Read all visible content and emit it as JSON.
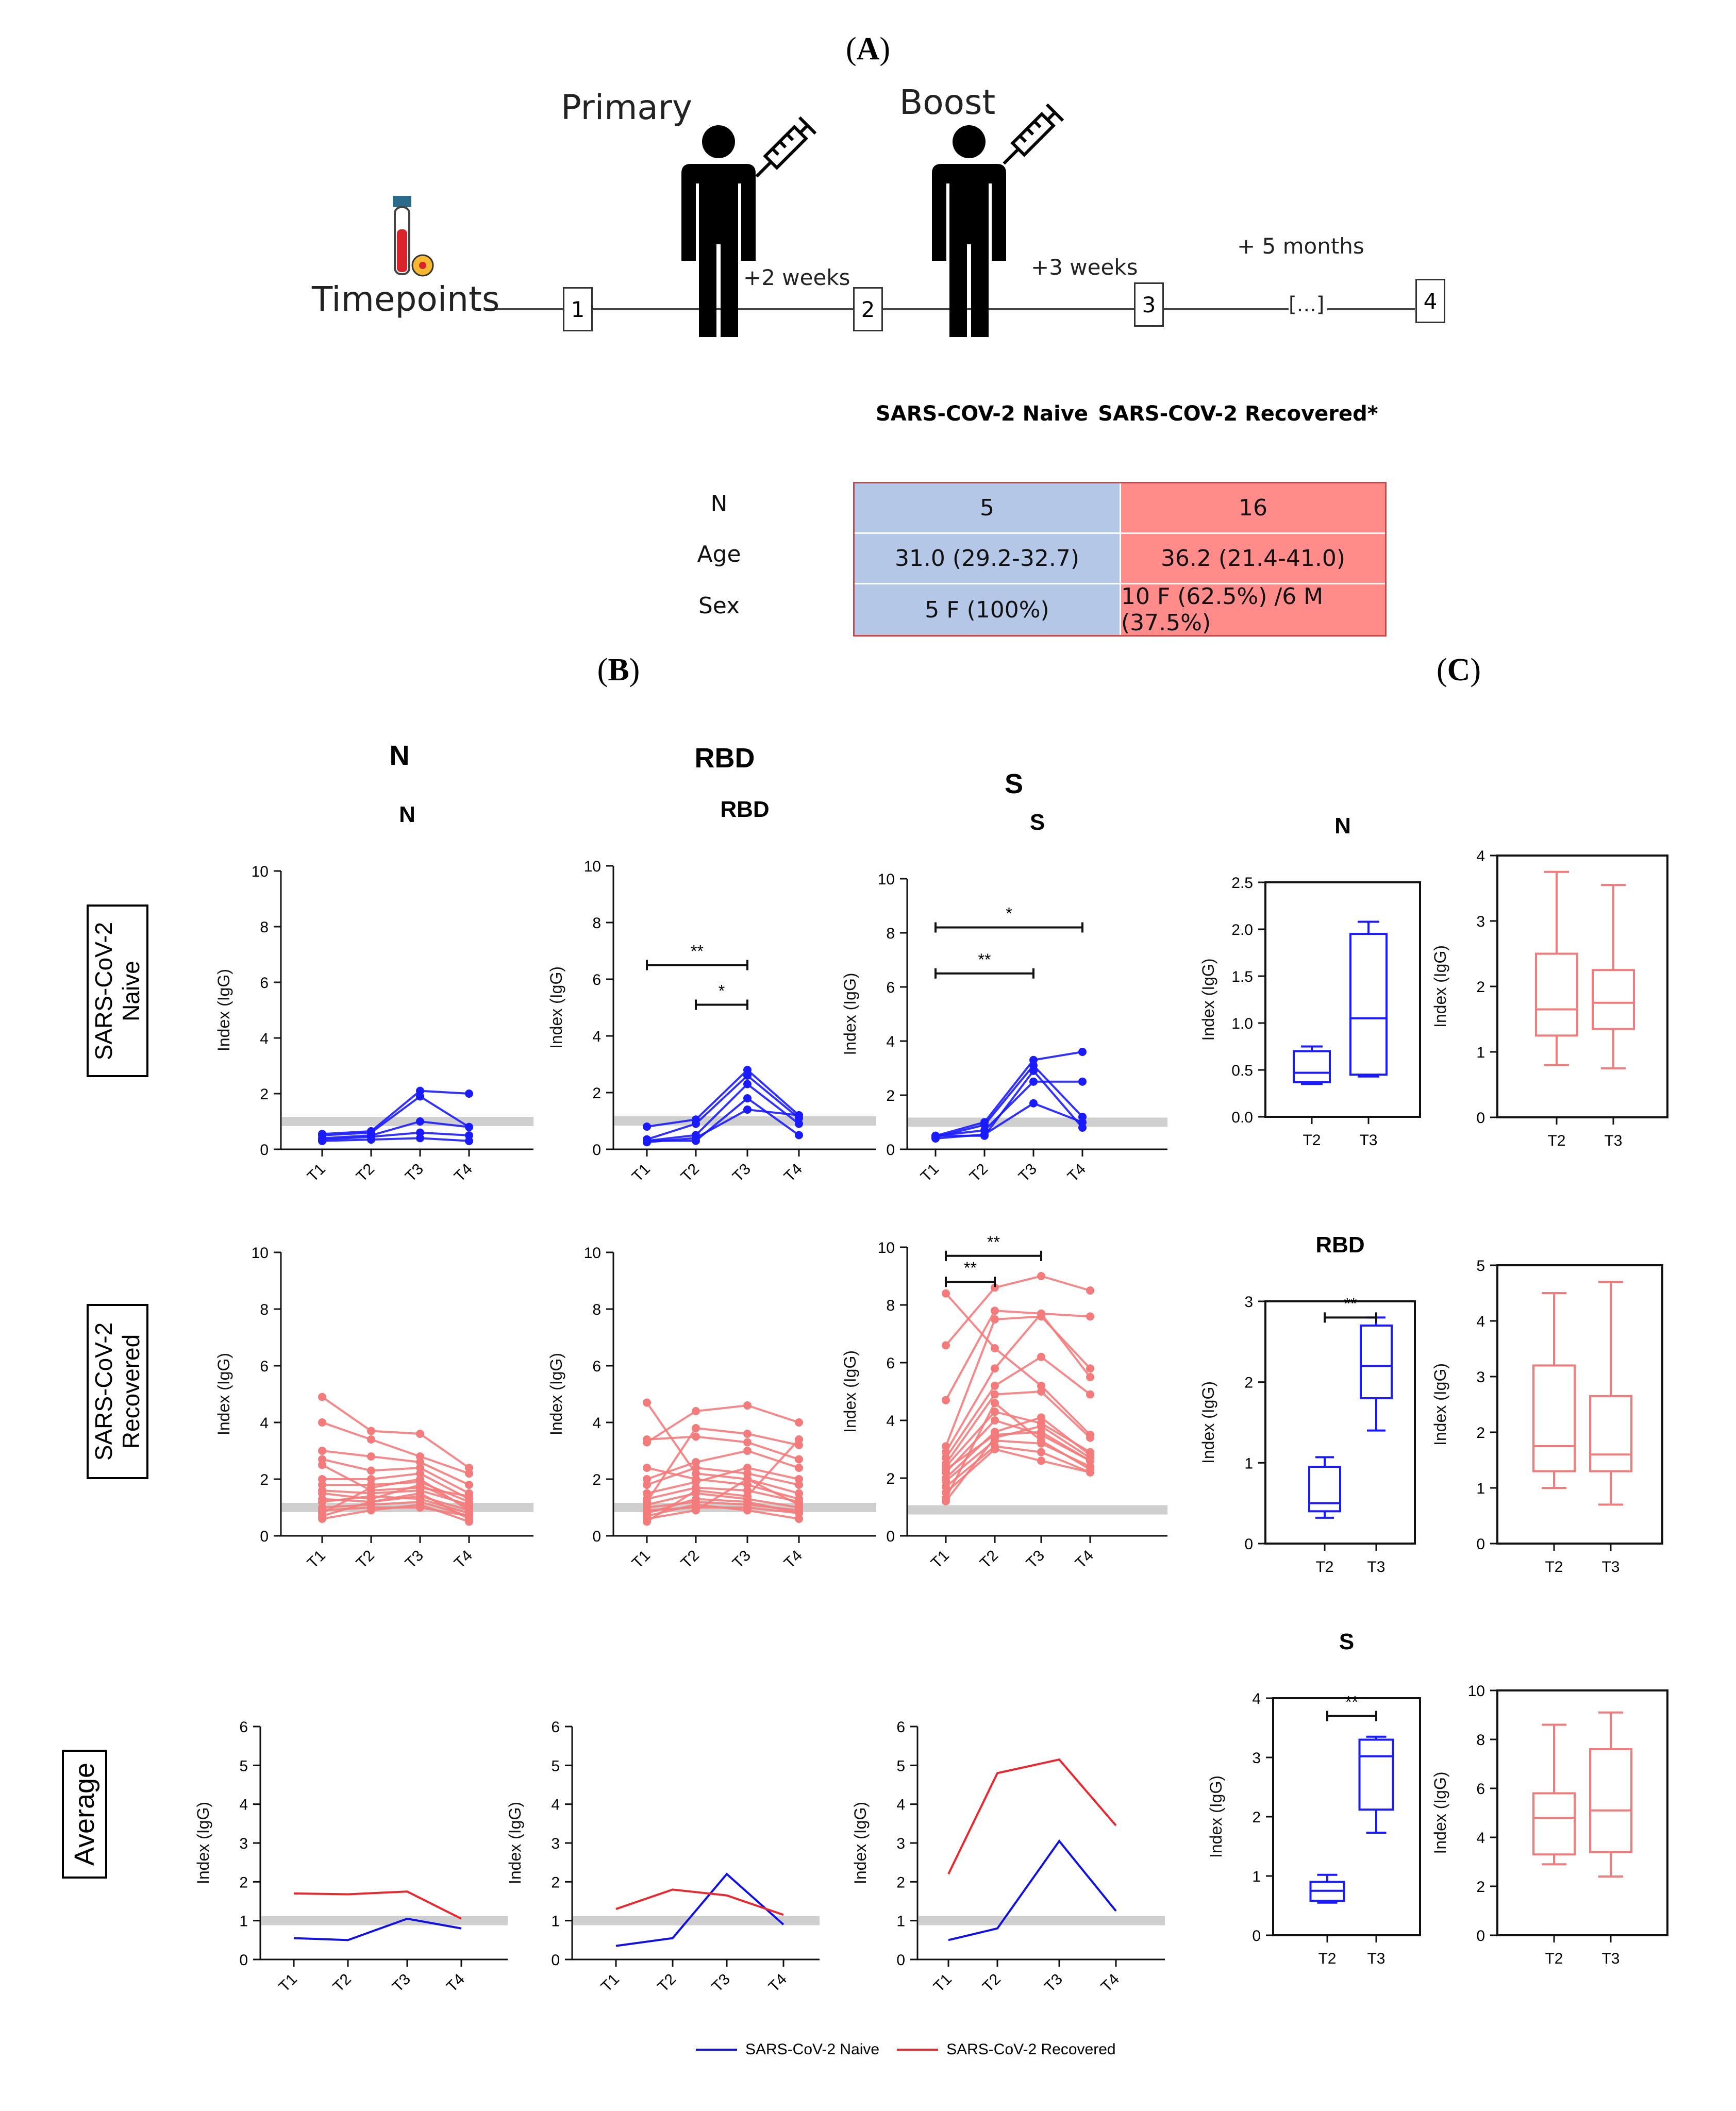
{
  "panels": {
    "a": "A",
    "b": "B",
    "c": "C"
  },
  "timeline": {
    "primary": "Primary",
    "boost": "Boost",
    "timepoints_label": "Timepoints",
    "points": [
      "1",
      "2",
      "3",
      "4"
    ],
    "intervals": [
      "+2 weeks",
      "+3 weeks",
      "+ 5 months"
    ],
    "ellipsis": "[...]"
  },
  "table": {
    "headers": [
      "SARS-COV-2 Naive",
      "SARS-COV-2 Recovered*"
    ],
    "rows": [
      {
        "label": "N",
        "naive": "5",
        "recovered": "16"
      },
      {
        "label": "Age",
        "naive": "31.0 (29.2-32.7)",
        "recovered": "36.2 (21.4-41.0)"
      },
      {
        "label": "Sex",
        "naive": "5 F (100%)",
        "recovered": "10 F (62.5%) /6 M (37.5%)"
      }
    ],
    "colors": {
      "naive": "#b4c7e7",
      "recovered": "#ff8b8b"
    }
  },
  "row_labels": {
    "naive": "SARS-CoV-2 Naive",
    "recovered": "SARS-CoV-2 Recovered",
    "average": "Average"
  },
  "column_titles": {
    "n": "N",
    "rbd": "RBD",
    "s": "S"
  },
  "legend": {
    "naive": "SARS-CoV-2 Naive",
    "recovered": "SARS-CoV-2 Recovered"
  },
  "colors": {
    "naive": "#1a1aff",
    "recovered": "#f47b7b",
    "avg_recovered": "#e8282e",
    "avg_naive": "#1010e6",
    "threshold": "#cfcfcf"
  },
  "chart_data": [
    {
      "id": "naive-N",
      "type": "line",
      "title": "N",
      "ylabel": "Index (IgG)",
      "categories": [
        "T1",
        "T2",
        "T3",
        "T4"
      ],
      "ylim": [
        0,
        10
      ],
      "yticks": [
        0,
        2,
        4,
        6,
        8,
        10
      ],
      "threshold": 1.0,
      "series": [
        [
          0.55,
          0.65,
          2.1,
          2.0
        ],
        [
          0.5,
          0.6,
          1.9,
          0.8
        ],
        [
          0.4,
          0.5,
          1.0,
          0.8
        ],
        [
          0.35,
          0.45,
          0.6,
          0.5
        ],
        [
          0.3,
          0.35,
          0.4,
          0.3
        ]
      ],
      "sig": []
    },
    {
      "id": "naive-RBD",
      "type": "line",
      "title": "RBD",
      "ylabel": "Index (IgG)",
      "categories": [
        "T1",
        "T2",
        "T3",
        "T4"
      ],
      "ylim": [
        0,
        10
      ],
      "yticks": [
        0,
        2,
        4,
        6,
        8,
        10
      ],
      "threshold": 1.0,
      "series": [
        [
          0.8,
          1.05,
          2.8,
          1.2
        ],
        [
          0.35,
          0.9,
          2.6,
          1.1
        ],
        [
          0.3,
          0.5,
          2.3,
          0.9
        ],
        [
          0.25,
          0.4,
          1.4,
          1.2
        ],
        [
          0.3,
          0.3,
          1.8,
          0.5
        ]
      ],
      "sig": [
        {
          "from": 0,
          "to": 2,
          "y": 6.5,
          "label": "**"
        },
        {
          "from": 1,
          "to": 2,
          "y": 5.1,
          "label": "*"
        }
      ]
    },
    {
      "id": "naive-S",
      "type": "line",
      "title": "S",
      "ylabel": "Index (IgG)",
      "categories": [
        "T1",
        "T2",
        "T3",
        "T4"
      ],
      "ylim": [
        0,
        10
      ],
      "yticks": [
        0,
        2,
        4,
        6,
        8,
        10
      ],
      "threshold": 1.0,
      "series": [
        [
          0.5,
          1.0,
          3.3,
          3.6
        ],
        [
          0.45,
          0.9,
          3.1,
          1.2
        ],
        [
          0.5,
          0.7,
          2.5,
          2.5
        ],
        [
          0.4,
          0.55,
          1.7,
          1.0
        ],
        [
          0.5,
          0.5,
          2.9,
          0.8
        ]
      ],
      "sig": [
        {
          "from": 0,
          "to": 3,
          "y": 8.2,
          "label": "*"
        },
        {
          "from": 0,
          "to": 2,
          "y": 6.5,
          "label": "**"
        }
      ]
    },
    {
      "id": "rec-N",
      "type": "line",
      "title": "",
      "ylabel": "Index (IgG)",
      "categories": [
        "T1",
        "T2",
        "T3",
        "T4"
      ],
      "ylim": [
        0,
        10
      ],
      "yticks": [
        0,
        2,
        4,
        6,
        8,
        10
      ],
      "threshold": 1.0,
      "series": [
        [
          4.9,
          3.7,
          3.6,
          2.4
        ],
        [
          4.0,
          3.4,
          2.8,
          2.2
        ],
        [
          3.0,
          2.8,
          2.6,
          1.8
        ],
        [
          2.7,
          2.3,
          2.4,
          1.5
        ],
        [
          2.0,
          2.0,
          2.2,
          1.3
        ],
        [
          1.8,
          1.8,
          1.9,
          1.2
        ],
        [
          1.6,
          1.5,
          1.6,
          1.1
        ],
        [
          1.5,
          1.3,
          1.8,
          1.0
        ],
        [
          1.3,
          1.2,
          1.4,
          0.9
        ],
        [
          1.2,
          1.4,
          1.3,
          0.8
        ],
        [
          1.0,
          1.1,
          1.2,
          0.7
        ],
        [
          0.9,
          1.0,
          1.0,
          0.7
        ],
        [
          0.8,
          1.7,
          2.0,
          0.9
        ],
        [
          0.7,
          1.2,
          1.5,
          0.6
        ],
        [
          0.6,
          0.9,
          1.1,
          0.5
        ],
        [
          2.5,
          1.6,
          1.7,
          1.4
        ]
      ],
      "sig": []
    },
    {
      "id": "rec-RBD",
      "type": "line",
      "title": "",
      "ylabel": "Index (IgG)",
      "categories": [
        "T1",
        "T2",
        "T3",
        "T4"
      ],
      "ylim": [
        0,
        10
      ],
      "yticks": [
        0,
        2,
        4,
        6,
        8,
        10
      ],
      "threshold": 1.0,
      "series": [
        [
          4.7,
          2.2,
          2.0,
          1.1
        ],
        [
          3.4,
          3.5,
          3.3,
          2.7
        ],
        [
          3.3,
          4.4,
          4.6,
          4.0
        ],
        [
          1.2,
          3.8,
          3.6,
          3.2
        ],
        [
          2.0,
          2.6,
          3.0,
          2.4
        ],
        [
          1.8,
          2.4,
          2.2,
          1.8
        ],
        [
          1.5,
          1.9,
          2.4,
          2.0
        ],
        [
          1.3,
          1.7,
          1.6,
          1.2
        ],
        [
          1.1,
          1.5,
          1.3,
          1.0
        ],
        [
          1.0,
          1.2,
          1.1,
          0.9
        ],
        [
          0.9,
          1.0,
          1.0,
          0.8
        ],
        [
          0.8,
          1.3,
          1.2,
          0.8
        ],
        [
          0.7,
          1.1,
          0.9,
          0.6
        ],
        [
          0.6,
          0.9,
          2.0,
          1.5
        ],
        [
          0.5,
          1.6,
          1.4,
          3.4
        ],
        [
          2.4,
          2.0,
          1.8,
          1.3
        ]
      ],
      "sig": []
    },
    {
      "id": "rec-S",
      "type": "line",
      "title": "",
      "ylabel": "Index (IgG)",
      "categories": [
        "T1",
        "T2",
        "T3",
        "T4"
      ],
      "ylim": [
        0,
        10
      ],
      "yticks": [
        0,
        2,
        4,
        6,
        8,
        10
      ],
      "threshold": 0.9,
      "series": [
        [
          8.4,
          6.5,
          5.2,
          3.5
        ],
        [
          6.6,
          8.6,
          9.0,
          8.5
        ],
        [
          4.7,
          7.8,
          7.7,
          7.6
        ],
        [
          3.1,
          7.5,
          7.6,
          5.8
        ],
        [
          2.9,
          5.8,
          7.7,
          5.5
        ],
        [
          2.7,
          5.2,
          6.2,
          4.9
        ],
        [
          2.5,
          4.9,
          5.0,
          3.4
        ],
        [
          2.4,
          4.3,
          3.9,
          2.9
        ],
        [
          2.2,
          4.0,
          3.5,
          2.6
        ],
        [
          2.0,
          3.6,
          4.1,
          2.8
        ],
        [
          1.9,
          3.3,
          3.2,
          2.4
        ],
        [
          1.7,
          3.1,
          2.9,
          2.2
        ],
        [
          1.5,
          3.0,
          2.6,
          2.2
        ],
        [
          1.2,
          3.4,
          3.8,
          2.7
        ],
        [
          1.3,
          4.6,
          3.3,
          2.3
        ],
        [
          2.3,
          3.5,
          3.6,
          2.6
        ]
      ],
      "sig": [
        {
          "from": 0,
          "to": 2,
          "y": 9.7,
          "label": "**"
        },
        {
          "from": 0,
          "to": 1,
          "y": 8.8,
          "label": "**"
        }
      ]
    },
    {
      "id": "avg-N",
      "type": "line",
      "title": "",
      "ylabel": "Index (IgG)",
      "categories": [
        "T1",
        "T2",
        "T3",
        "T4"
      ],
      "ylim": [
        0,
        6
      ],
      "yticks": [
        0,
        1,
        2,
        3,
        4,
        5,
        6
      ],
      "threshold": 1.0,
      "series": [
        {
          "name": "SARS-CoV-2 Naive",
          "values": [
            0.55,
            0.5,
            1.05,
            0.8
          ]
        },
        {
          "name": "SARS-CoV-2 Recovered",
          "values": [
            1.7,
            1.68,
            1.75,
            1.05
          ]
        }
      ]
    },
    {
      "id": "avg-RBD",
      "type": "line",
      "title": "",
      "ylabel": "Index (IgG)",
      "categories": [
        "T1",
        "T2",
        "T3",
        "T4"
      ],
      "ylim": [
        0,
        6
      ],
      "yticks": [
        0,
        1,
        2,
        3,
        4,
        5,
        6
      ],
      "threshold": 1.0,
      "series": [
        {
          "name": "SARS-CoV-2 Naive",
          "values": [
            0.35,
            0.55,
            2.2,
            0.9
          ]
        },
        {
          "name": "SARS-CoV-2 Recovered",
          "values": [
            1.3,
            1.8,
            1.65,
            1.15
          ]
        }
      ]
    },
    {
      "id": "avg-S",
      "type": "line",
      "title": "",
      "ylabel": "Index (IgG)",
      "categories": [
        "T1",
        "T2",
        "T3",
        "T4"
      ],
      "ylim": [
        0,
        6
      ],
      "yticks": [
        0,
        1,
        2,
        3,
        4,
        5,
        6
      ],
      "threshold": 1.0,
      "series": [
        {
          "name": "SARS-CoV-2 Naive",
          "values": [
            0.5,
            0.8,
            3.05,
            1.25
          ]
        },
        {
          "name": "SARS-CoV-2 Recovered",
          "values": [
            2.2,
            4.8,
            5.15,
            3.45
          ]
        }
      ]
    },
    {
      "id": "box-N-naive",
      "type": "box",
      "title": "N",
      "ylabel": "Index (IgG)",
      "categories": [
        "T2",
        "T3"
      ],
      "ylim": [
        0,
        2.5
      ],
      "yticks": [
        "0.0",
        "0.5",
        "1.0",
        "1.5",
        "2.0",
        "2.5"
      ],
      "boxes": [
        {
          "min": 0.35,
          "q1": 0.37,
          "median": 0.47,
          "q3": 0.7,
          "max": 0.75
        },
        {
          "min": 0.43,
          "q1": 0.45,
          "median": 1.05,
          "q3": 1.95,
          "max": 2.08
        }
      ],
      "sig": []
    },
    {
      "id": "box-N-rec",
      "type": "box",
      "title": "",
      "ylabel": "Index (IgG)",
      "categories": [
        "T2",
        "T3"
      ],
      "ylim": [
        0,
        4
      ],
      "yticks": [
        "0",
        "1",
        "2",
        "3",
        "4"
      ],
      "boxes": [
        {
          "min": 0.8,
          "q1": 1.25,
          "median": 1.65,
          "q3": 2.5,
          "max": 3.75
        },
        {
          "min": 0.75,
          "q1": 1.35,
          "median": 1.75,
          "q3": 2.25,
          "max": 3.55
        }
      ],
      "sig": []
    },
    {
      "id": "box-RBD-naive",
      "type": "box",
      "title": "RBD",
      "ylabel": "Index (IgG)",
      "categories": [
        "T2",
        "T3"
      ],
      "ylim": [
        0,
        3
      ],
      "yticks": [
        "0",
        "1",
        "2",
        "3"
      ],
      "boxes": [
        {
          "min": 0.32,
          "q1": 0.4,
          "median": 0.5,
          "q3": 0.95,
          "max": 1.07
        },
        {
          "min": 1.4,
          "q1": 1.8,
          "median": 2.2,
          "q3": 2.7,
          "max": 2.8
        }
      ],
      "sig": [
        {
          "from": 0,
          "to": 1,
          "y": 2.8,
          "label": "**"
        }
      ]
    },
    {
      "id": "box-RBD-rec",
      "type": "box",
      "title": "",
      "ylabel": "Index (IgG)",
      "categories": [
        "T2",
        "T3"
      ],
      "ylim": [
        0,
        5
      ],
      "yticks": [
        "0",
        "1",
        "2",
        "3",
        "4",
        "5"
      ],
      "boxes": [
        {
          "min": 1.0,
          "q1": 1.3,
          "median": 1.75,
          "q3": 3.2,
          "max": 4.5
        },
        {
          "min": 0.7,
          "q1": 1.3,
          "median": 1.6,
          "q3": 2.65,
          "max": 4.7
        }
      ],
      "sig": []
    },
    {
      "id": "box-S-naive",
      "type": "box",
      "title": "S",
      "ylabel": "Index (IgG)",
      "categories": [
        "T2",
        "T3"
      ],
      "ylim": [
        0,
        4
      ],
      "yticks": [
        "0",
        "1",
        "2",
        "3",
        "4"
      ],
      "boxes": [
        {
          "min": 0.55,
          "q1": 0.58,
          "median": 0.75,
          "q3": 0.9,
          "max": 1.02
        },
        {
          "min": 1.73,
          "q1": 2.12,
          "median": 3.02,
          "q3": 3.3,
          "max": 3.35
        }
      ],
      "sig": [
        {
          "from": 0,
          "to": 1,
          "y": 3.7,
          "label": "**"
        }
      ]
    },
    {
      "id": "box-S-rec",
      "type": "box",
      "title": "",
      "ylabel": "Index (IgG)",
      "categories": [
        "T2",
        "T3"
      ],
      "ylim": [
        0,
        10
      ],
      "yticks": [
        "0",
        "2",
        "4",
        "6",
        "8",
        "10"
      ],
      "boxes": [
        {
          "min": 2.9,
          "q1": 3.3,
          "median": 4.8,
          "q3": 5.8,
          "max": 8.6
        },
        {
          "min": 2.4,
          "q1": 3.4,
          "median": 5.1,
          "q3": 7.6,
          "max": 9.1
        }
      ],
      "sig": []
    }
  ]
}
